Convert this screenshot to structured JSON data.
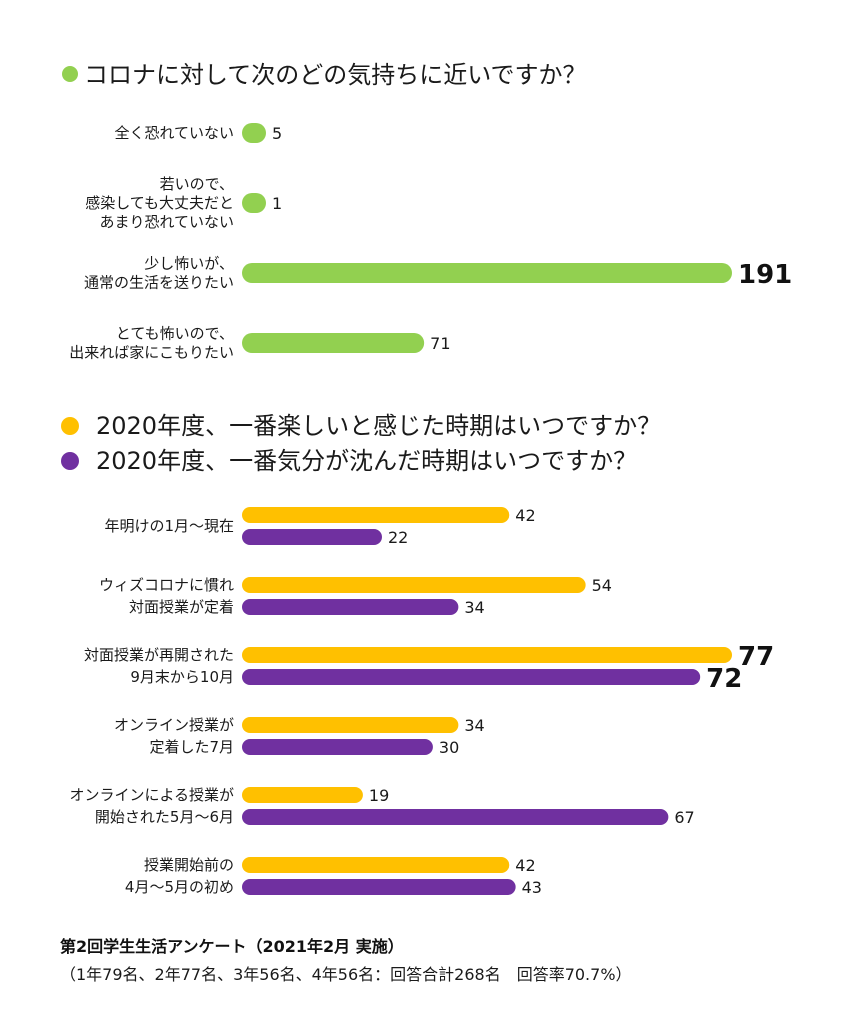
{
  "chart_data": [
    {
      "type": "bar",
      "orientation": "horizontal",
      "title": "コロナに対して次のどの気持ちに近いですか？",
      "marker_color": "#92D050",
      "categories": [
        [
          "全く恐れていない"
        ],
        [
          "若いので、",
          "感染しても大丈夫だと",
          "あまり恐れていない"
        ],
        [
          "少し怖いが、",
          "通常の生活を送りたい"
        ],
        [
          "とても怖いので、",
          "出来れば家にこもりたい"
        ]
      ],
      "series": [
        {
          "color": "#92D050",
          "values": [
            5,
            1,
            191,
            71
          ]
        }
      ],
      "xlim": [
        0,
        191
      ],
      "emphasized_values": [
        191
      ]
    },
    {
      "type": "bar",
      "orientation": "horizontal",
      "categories": [
        [
          "年明けの1月～現在"
        ],
        [
          "ウィズコロナに慣れ",
          "対面授業が定着"
        ],
        [
          "対面授業が再開された",
          "9月末から10月"
        ],
        [
          "オンライン授業が",
          "定着した7月"
        ],
        [
          "オンラインによる授業が",
          "開始された5月～6月"
        ],
        [
          "授業開始前の",
          "4月～5月の初め"
        ]
      ],
      "series": [
        {
          "name": "2020年度、一番楽しいと感じた時期はいつですか？",
          "color": "#FFC000",
          "values": [
            42,
            54,
            77,
            34,
            19,
            42
          ]
        },
        {
          "name": "2020年度、一番気分が沈んだ時期はいつですか？",
          "color": "#7030A0",
          "values": [
            22,
            34,
            72,
            30,
            67,
            43
          ]
        }
      ],
      "xlim": [
        0,
        77
      ],
      "legend": "top-left",
      "emphasized_values": [
        77,
        72
      ]
    }
  ],
  "footer": {
    "title": "第2回学生生活アンケート（2021年2月 実施）",
    "note": "（1年79名、2年77名、3年56名、4年56名：回答合計268名　回答率70.7%）"
  }
}
